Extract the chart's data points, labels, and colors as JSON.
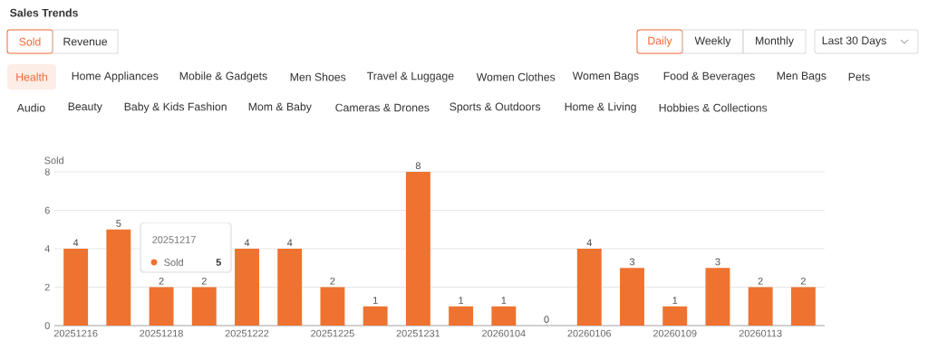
{
  "chart_data": [
    {
      "type": "other",
      "title": "Sales Trends",
      "annotations": [
        "Sold",
        "Revenue",
        "Daily",
        "Weekly",
        "Monthly",
        "Last 30 Days",
        "Health",
        "Home Appliances",
        "Mobile & Gadgets",
        "Men Shoes",
        "Travel & Luggage",
        "Women Clothes",
        "Women Bags",
        "Food & Beverages",
        "Men Bags",
        "Pets",
        "Audio",
        "Beauty",
        "Baby & Kids Fashion",
        "Mom & Baby",
        "Cameras & Drones",
        "Sports & Outdoors",
        "Home & Living",
        "Hobbies & Collections"
      ]
    },
    {
      "type": "bar",
      "ylabel": "Sold",
      "categories": [
        "20251216",
        null,
        "20251218",
        null,
        "20251222",
        null,
        "20251225",
        null,
        "20251231",
        null,
        "20260104",
        null,
        "20260106",
        null,
        "20260109",
        null,
        "20260113",
        null
      ],
      "values": [
        4,
        5,
        2,
        2,
        4,
        4,
        2,
        1,
        8,
        1,
        1,
        0,
        4,
        3,
        1,
        3,
        2,
        2
      ],
      "color": "#ee7330",
      "ylim": [
        0,
        8
      ],
      "yticks": [
        0,
        2,
        4,
        6,
        8
      ],
      "grid": "y",
      "data_labels": true,
      "annotations": [
        "20251217",
        "Sold",
        "5"
      ]
    }
  ]
}
